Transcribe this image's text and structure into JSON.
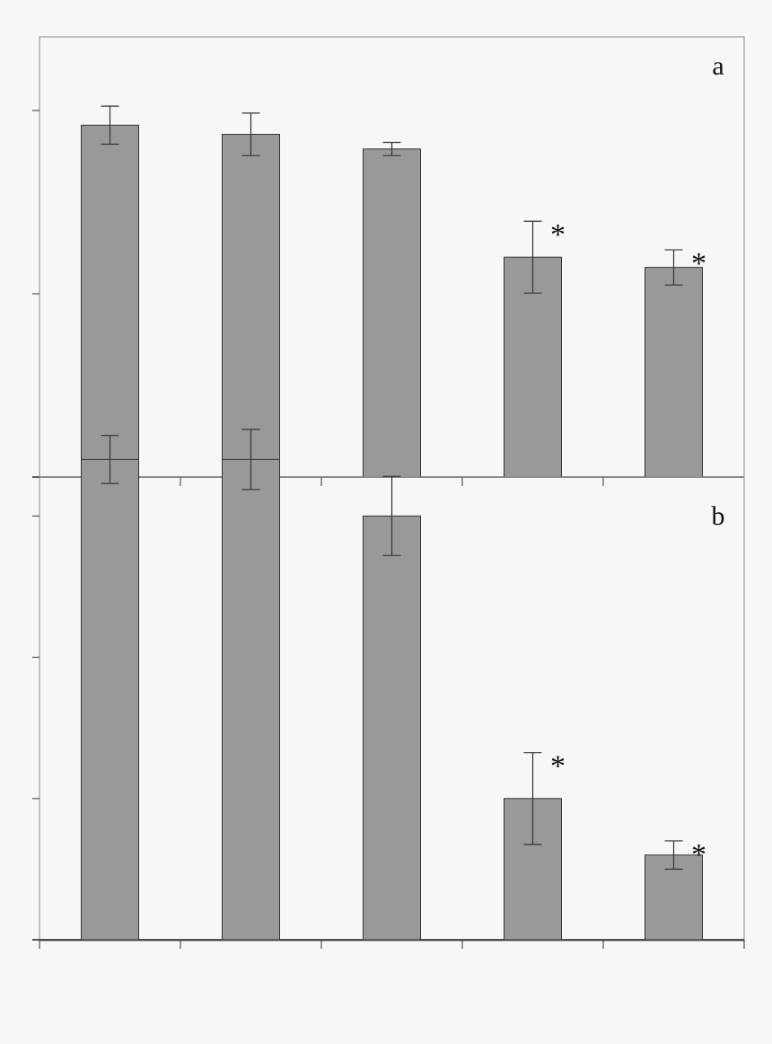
{
  "chart_data": [
    {
      "type": "bar",
      "panel": "a",
      "categories": [
        "",
        "",
        "",
        "",
        ""
      ],
      "ylim": [
        0,
        1.1
      ],
      "yticks": [
        0,
        0.5,
        1.0
      ],
      "values": [
        0.96,
        0.935,
        0.895,
        0.6,
        0.572
      ],
      "errors": [
        0.052,
        0.058,
        0.018,
        0.098,
        0.048
      ],
      "significant": [
        false,
        false,
        false,
        true,
        true
      ],
      "significance_marker": "*",
      "bar_color": "#999999",
      "grid": false
    },
    {
      "type": "bar",
      "panel": "b",
      "categories": [
        "",
        "",
        "",
        "",
        ""
      ],
      "ylim": [
        0,
        1.2
      ],
      "yticks": [
        0,
        0.4,
        0.8,
        1.2
      ],
      "values": [
        1.36,
        1.36,
        1.2,
        0.4,
        0.24
      ],
      "errors": [
        0.068,
        0.085,
        0.112,
        0.13,
        0.04
      ],
      "significant": [
        false,
        false,
        false,
        true,
        true
      ],
      "significance_marker": "*",
      "bar_color": "#999999",
      "grid": false
    }
  ]
}
